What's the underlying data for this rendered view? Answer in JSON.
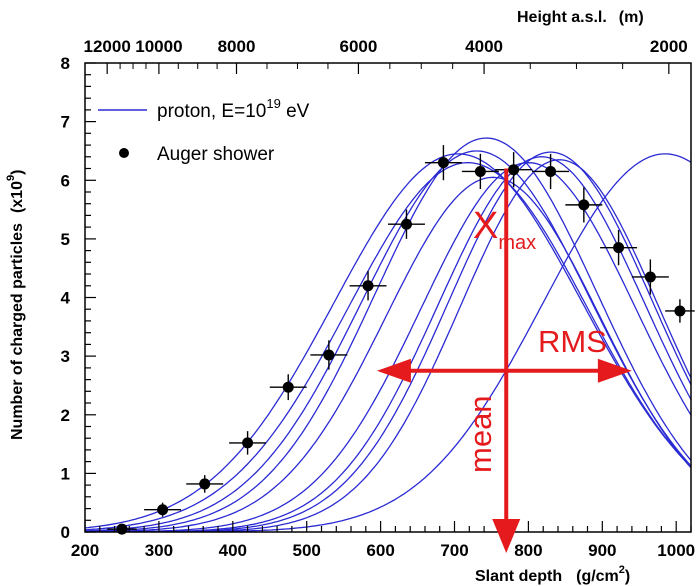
{
  "chart_data": {
    "type": "line",
    "xlabel": "Slant depth",
    "xlabel_unit": "(g/cm",
    "xlabel_unit_sup": "2",
    "xlabel_unit_close": ")",
    "ylabel": "Number of charged particles",
    "ylabel_unit": "(x10",
    "ylabel_unit_sup": "9",
    "ylabel_unit_close": ")",
    "top_axis_label": "Height a.s.l.",
    "top_axis_unit": "(m)",
    "xlim": [
      200,
      1020
    ],
    "ylim": [
      0,
      8
    ],
    "x_ticks": [
      "200",
      "300",
      "400",
      "500",
      "600",
      "700",
      "800",
      "900",
      "1000"
    ],
    "y_ticks": [
      "0",
      "1",
      "2",
      "3",
      "4",
      "5",
      "6",
      "7",
      "8"
    ],
    "top_ticks": [
      {
        "label": "12000",
        "x": 230
      },
      {
        "label": "10000",
        "x": 300
      },
      {
        "label": "8000",
        "x": 405
      },
      {
        "label": "6000",
        "x": 570
      },
      {
        "label": "4000",
        "x": 740
      },
      {
        "label": "2000",
        "x": 990
      }
    ],
    "legend": {
      "position": "top-left",
      "line_label_prefix": "proton, E=10",
      "line_label_sup": "19",
      "line_label_suffix": " eV",
      "points_label": "Auger shower"
    },
    "series": [
      {
        "name": "proton, E=10^19 eV",
        "kind": "curves",
        "color": "#2b2bd4",
        "curves": [
          {
            "xmax": 705,
            "nmax": 6.45,
            "width": 168
          },
          {
            "xmax": 718,
            "nmax": 6.3,
            "width": 162
          },
          {
            "xmax": 730,
            "nmax": 6.5,
            "width": 155
          },
          {
            "xmax": 743,
            "nmax": 6.72,
            "width": 150
          },
          {
            "xmax": 752,
            "nmax": 6.05,
            "width": 145
          },
          {
            "xmax": 800,
            "nmax": 6.3,
            "width": 145
          },
          {
            "xmax": 818,
            "nmax": 6.4,
            "width": 140
          },
          {
            "xmax": 830,
            "nmax": 6.48,
            "width": 138
          },
          {
            "xmax": 842,
            "nmax": 6.35,
            "width": 134
          },
          {
            "xmax": 985,
            "nmax": 6.45,
            "width": 165
          }
        ]
      },
      {
        "name": "Auger shower",
        "kind": "points",
        "color": "#000000",
        "points": [
          {
            "x": 250,
            "y": 0.05,
            "xerr": 20,
            "yerr": 0.05
          },
          {
            "x": 305,
            "y": 0.38,
            "xerr": 25,
            "yerr": 0.12
          },
          {
            "x": 362,
            "y": 0.82,
            "xerr": 25,
            "yerr": 0.15
          },
          {
            "x": 420,
            "y": 1.52,
            "xerr": 25,
            "yerr": 0.2
          },
          {
            "x": 475,
            "y": 2.47,
            "xerr": 25,
            "yerr": 0.22
          },
          {
            "x": 530,
            "y": 3.02,
            "xerr": 25,
            "yerr": 0.25
          },
          {
            "x": 583,
            "y": 4.2,
            "xerr": 25,
            "yerr": 0.25
          },
          {
            "x": 635,
            "y": 5.25,
            "xerr": 25,
            "yerr": 0.25
          },
          {
            "x": 685,
            "y": 6.3,
            "xerr": 25,
            "yerr": 0.3
          },
          {
            "x": 735,
            "y": 6.15,
            "xerr": 25,
            "yerr": 0.3
          },
          {
            "x": 780,
            "y": 6.18,
            "xerr": 25,
            "yerr": 0.3
          },
          {
            "x": 830,
            "y": 6.15,
            "xerr": 25,
            "yerr": 0.3
          },
          {
            "x": 875,
            "y": 5.58,
            "xerr": 25,
            "yerr": 0.3
          },
          {
            "x": 922,
            "y": 4.85,
            "xerr": 25,
            "yerr": 0.3
          },
          {
            "x": 965,
            "y": 4.35,
            "xerr": 25,
            "yerr": 0.3
          },
          {
            "x": 1005,
            "y": 3.77,
            "xerr": 20,
            "yerr": 0.2
          }
        ]
      }
    ],
    "annotations": {
      "color": "#e41a1c",
      "xmax_label": "X",
      "xmax_sub": "max",
      "rms_label": "RMS",
      "mean_label": "mean",
      "mean_x": 770,
      "mean_y_top": 6.2,
      "rms_y": 2.75,
      "rms_x_left": 595,
      "rms_x_right": 940
    }
  }
}
